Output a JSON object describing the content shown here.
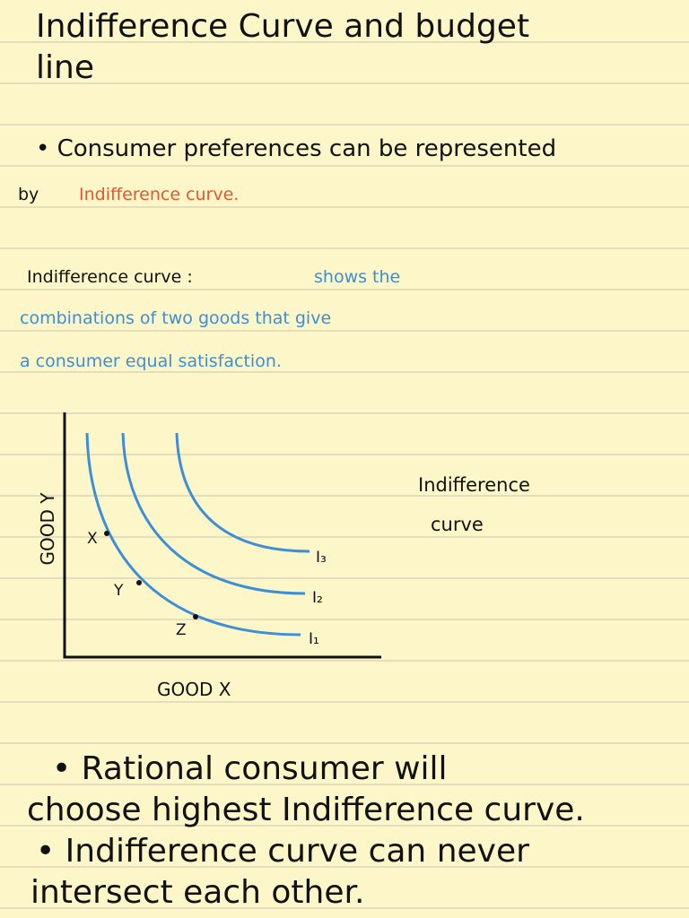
{
  "title": [
    "Indifference Curve and budget",
    "line"
  ],
  "point_one": {
    "line_1": "• Consumer preferences can be represented",
    "line_2": "by",
    "highlight": "Indifference curve."
  },
  "definition": {
    "term": "Indifference curve :",
    "lines": [
      "shows the",
      "combinations of two goods that give",
      "a consumer equal satisfaction."
    ]
  },
  "diagram": {
    "y_axis_label": "GOOD Y",
    "x_axis_label": "GOOD X",
    "curves": [
      "I₃",
      "I₂",
      "I₁"
    ],
    "points": [
      "X",
      "Y",
      "Z"
    ],
    "caption": [
      "Indifference",
      "curve"
    ]
  },
  "points": [
    [
      "• Rational consumer will",
      "choose highest Indifference curve."
    ],
    [
      "• Indifference curve can never",
      "intersect each other."
    ]
  ]
}
